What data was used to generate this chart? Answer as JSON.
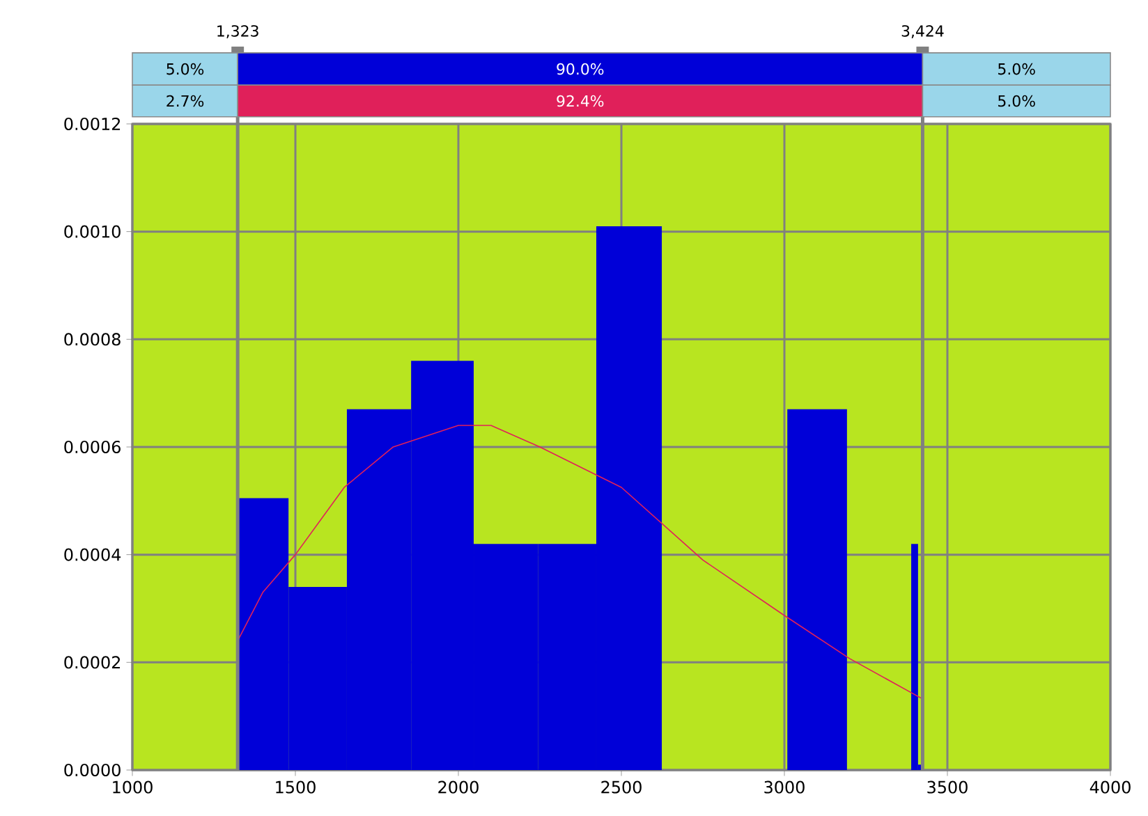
{
  "chart_data": {
    "type": "histogram",
    "series": [
      {
        "color": "#0000d8",
        "bins": [
          1323,
          1479,
          1658,
          1855,
          2047,
          2244,
          2423,
          2624,
          3009,
          3192,
          3389,
          3410,
          3424
        ],
        "values": [
          0.000505,
          0.00034,
          0.00067,
          0.00076,
          0.00042,
          0.00042,
          0.00101,
          0,
          0.00067,
          0,
          0.00042,
          1e-05
        ]
      },
      {
        "type": "line",
        "color": "#e0205a",
        "x": [
          1323,
          1400,
          1500,
          1650,
          1800,
          2000,
          2100,
          2250,
          2500,
          2750,
          3000,
          3200,
          3424
        ],
        "values": [
          0.00024,
          0.00033,
          0.0004,
          0.000525,
          0.0006,
          0.00064,
          0.00064,
          0.0006,
          0.000525,
          0.00039,
          0.000287,
          0.000207,
          0.000132
        ]
      }
    ],
    "xlim": [
      1000,
      4000
    ],
    "xticks": [
      1000,
      1500,
      2000,
      2500,
      3000,
      3500,
      4000
    ],
    "ylim": [
      0,
      0.0012
    ],
    "yticks": [
      {
        "value": 0,
        "label": "0.0000"
      },
      {
        "value": 0.0002,
        "label": "0.0002"
      },
      {
        "value": 0.0004,
        "label": "0.0004"
      },
      {
        "value": 0.0006,
        "label": "0.0006"
      },
      {
        "value": 0.0008,
        "label": "0.0008"
      },
      {
        "value": 0.001,
        "label": "0.0010"
      },
      {
        "value": 0.0012,
        "label": "0.0012"
      }
    ],
    "grid": true,
    "ref_lines": [
      {
        "axis": "x",
        "value": 1323,
        "label": "1,323"
      },
      {
        "axis": "x",
        "value": 3424,
        "label": "3,424"
      }
    ],
    "annotations": [
      "5.0%",
      "90.0%",
      "5.0%",
      "2.7%",
      "92.4%",
      "5.0%"
    ]
  }
}
